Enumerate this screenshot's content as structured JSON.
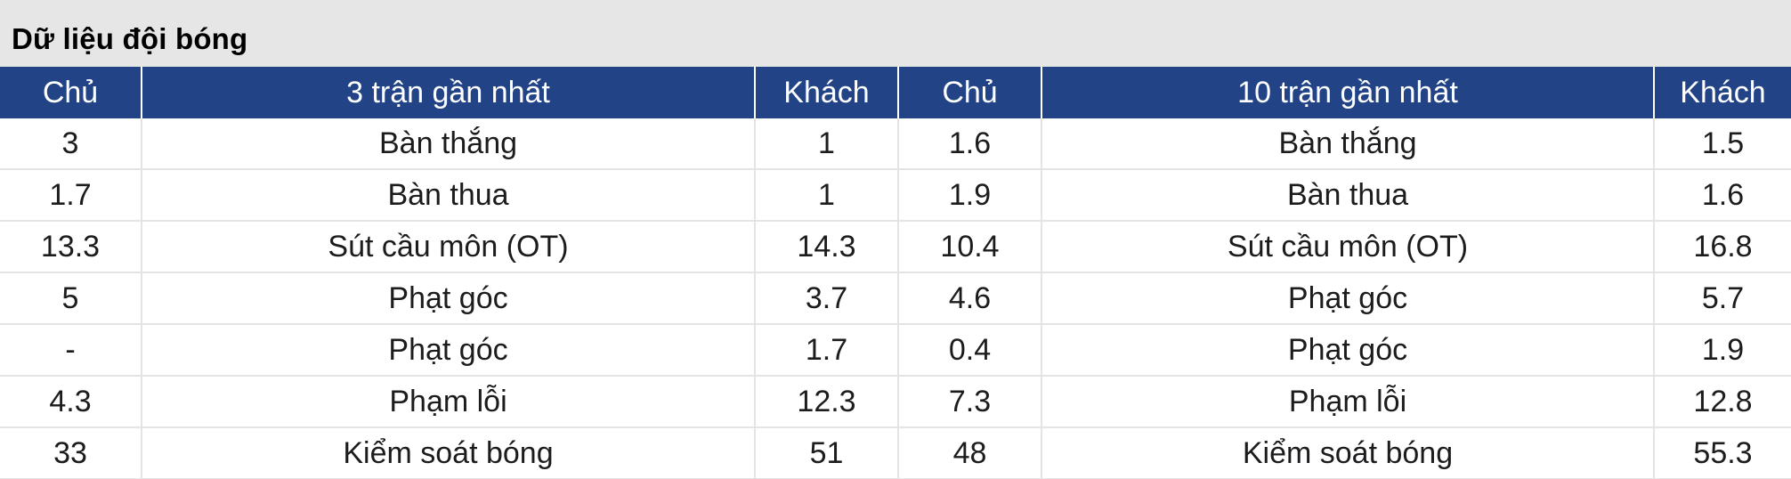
{
  "title": "Dữ liệu đội bóng",
  "colors": {
    "title_bg": "#e6e6e6",
    "header_bg": "#224487",
    "header_text": "#ffffff",
    "grid_line": "#e4e4e4",
    "text": "#1c1c1e"
  },
  "table": {
    "headers": [
      "Chủ",
      "3 trận gần nhất",
      "Khách",
      "Chủ",
      "10 trận gần nhất",
      "Khách"
    ],
    "rows": [
      [
        "3",
        "Bàn thắng",
        "1",
        "1.6",
        "Bàn thắng",
        "1.5"
      ],
      [
        "1.7",
        "Bàn thua",
        "1",
        "1.9",
        "Bàn thua",
        "1.6"
      ],
      [
        "13.3",
        "Sút cầu môn (OT)",
        "14.3",
        "10.4",
        "Sút cầu môn (OT)",
        "16.8"
      ],
      [
        "5",
        "Phạt góc",
        "3.7",
        "4.6",
        "Phạt góc",
        "5.7"
      ],
      [
        "-",
        "Phạt góc",
        "1.7",
        "0.4",
        "Phạt góc",
        "1.9"
      ],
      [
        "4.3",
        "Phạm lỗi",
        "12.3",
        "7.3",
        "Phạm lỗi",
        "12.8"
      ],
      [
        "33",
        "Kiểm soát bóng",
        "51",
        "48",
        "Kiểm soát bóng",
        "55.3"
      ]
    ]
  }
}
